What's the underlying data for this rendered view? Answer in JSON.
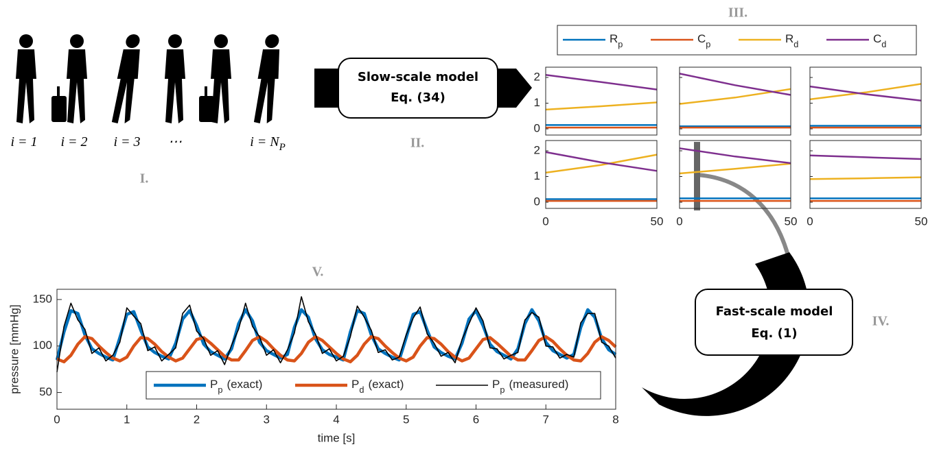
{
  "labels": [
    "I.",
    "II.",
    "III.",
    "IV.",
    "V."
  ],
  "persons": [
    {
      "text": "i = 1"
    },
    {
      "text": "i = 2"
    },
    {
      "text": "i = 3"
    },
    {
      "text": "⋯"
    },
    {
      "text": "i = N",
      "sub": "P"
    }
  ],
  "boxes": [
    {
      "title": "Slow-scale model",
      "eq": "Eq. (34)"
    },
    {
      "title": "Fast-scale model",
      "eq": "Eq. (1)"
    }
  ],
  "chart_data": [
    {
      "type": "line",
      "x": [
        0,
        25,
        50
      ],
      "xlim": [
        0,
        50
      ],
      "xticks": [
        0,
        50
      ],
      "ylim": [
        -0.24,
        2.4
      ],
      "yticks": [
        0,
        1,
        2
      ],
      "series": [
        {
          "name": "R",
          "sub": "p",
          "color": "#0072BD"
        },
        {
          "name": "C",
          "sub": "p",
          "color": "#D95319"
        },
        {
          "name": "R",
          "sub": "d",
          "color": "#EDB120"
        },
        {
          "name": "C",
          "sub": "d",
          "color": "#7E2F8E"
        }
      ],
      "panels": [
        [
          [
            0.15,
            0.15,
            0.15
          ],
          [
            0.05,
            0.05,
            0.05
          ],
          [
            0.75,
            0.88,
            1.03
          ],
          [
            2.1,
            1.82,
            1.53
          ]
        ],
        [
          [
            0.1,
            0.1,
            0.1
          ],
          [
            0.05,
            0.05,
            0.05
          ],
          [
            0.97,
            1.22,
            1.55
          ],
          [
            2.15,
            1.7,
            1.32
          ]
        ],
        [
          [
            0.12,
            0.12,
            0.12
          ],
          [
            0.05,
            0.05,
            0.05
          ],
          [
            1.15,
            1.42,
            1.75
          ],
          [
            1.65,
            1.35,
            1.1
          ]
        ],
        [
          [
            0.12,
            0.12,
            0.12
          ],
          [
            0.05,
            0.05,
            0.05
          ],
          [
            1.15,
            1.45,
            1.85
          ],
          [
            1.95,
            1.55,
            1.22
          ]
        ],
        [
          [
            0.15,
            0.15,
            0.15
          ],
          [
            0.05,
            0.05,
            0.05
          ],
          [
            1.12,
            1.3,
            1.5
          ],
          [
            2.1,
            1.78,
            1.52
          ]
        ],
        [
          [
            0.15,
            0.15,
            0.15
          ],
          [
            0.05,
            0.05,
            0.05
          ],
          [
            0.9,
            0.93,
            0.97
          ],
          [
            1.82,
            1.75,
            1.68
          ]
        ]
      ]
    },
    {
      "type": "line",
      "xlabel": "time [s]",
      "ylabel": "pressure [mmHg]",
      "xlim": [
        0,
        8
      ],
      "xticks": [
        0,
        1,
        2,
        3,
        4,
        5,
        6,
        7,
        8
      ],
      "ylim": [
        32,
        161
      ],
      "yticks": [
        50,
        100,
        150
      ],
      "legend": "lower center",
      "x": [
        0,
        0.1,
        0.2,
        0.3,
        0.4,
        0.5,
        0.6,
        0.7,
        0.8,
        0.9,
        1,
        1.1,
        1.2,
        1.3,
        1.4,
        1.5,
        1.6,
        1.7,
        1.8,
        1.9,
        2,
        2.1,
        2.2,
        2.3,
        2.4,
        2.5,
        2.6,
        2.7,
        2.8,
        2.9,
        3,
        3.1,
        3.2,
        3.3,
        3.4,
        3.5,
        3.6,
        3.7,
        3.8,
        3.9,
        4,
        4.1,
        4.2,
        4.3,
        4.4,
        4.5,
        4.6,
        4.7,
        4.8,
        4.9,
        5,
        5.1,
        5.2,
        5.3,
        5.4,
        5.5,
        5.6,
        5.7,
        5.8,
        5.9,
        6,
        6.1,
        6.2,
        6.3,
        6.4,
        6.5,
        6.6,
        6.7,
        6.8,
        6.9,
        7,
        7.1,
        7.2,
        7.3,
        7.4,
        7.5,
        7.6,
        7.7,
        7.8,
        7.9,
        8
      ],
      "series": [
        {
          "name": "P",
          "sub": "p",
          "suffix": "(exact)",
          "color": "#0072BD",
          "values": [
            85,
            115,
            138,
            135,
            112,
            97,
            92,
            88,
            85,
            109,
            134,
            137,
            117,
            99,
            93,
            89,
            86,
            103,
            129,
            138,
            122,
            102,
            94,
            90,
            86,
            97,
            124,
            139,
            127,
            104,
            95,
            91,
            87,
            91,
            120,
            139,
            131,
            108,
            96,
            91,
            88,
            85,
            115,
            138,
            135,
            112,
            97,
            92,
            88,
            85,
            109,
            134,
            137,
            117,
            99,
            93,
            89,
            86,
            103,
            129,
            138,
            122,
            102,
            94,
            90,
            86,
            97,
            124,
            139,
            127,
            104,
            95,
            91,
            87,
            91,
            120,
            139,
            131,
            108,
            96,
            91
          ]
        },
        {
          "name": "P",
          "sub": "d",
          "suffix": "(exact)",
          "color": "#D95319",
          "values": [
            86,
            83,
            90,
            102,
            110,
            108,
            100,
            93,
            87,
            84,
            88,
            100,
            109,
            108,
            102,
            94,
            88,
            84,
            87,
            97,
            107,
            109,
            103,
            96,
            89,
            85,
            85,
            95,
            106,
            110,
            105,
            97,
            90,
            85,
            84,
            92,
            104,
            110,
            106,
            99,
            92,
            86,
            83,
            90,
            102,
            110,
            108,
            100,
            93,
            87,
            84,
            88,
            100,
            109,
            108,
            102,
            94,
            88,
            84,
            87,
            97,
            107,
            109,
            103,
            96,
            89,
            85,
            85,
            95,
            106,
            110,
            105,
            97,
            90,
            85,
            84,
            92,
            104,
            110,
            106,
            99
          ]
        },
        {
          "name": "P",
          "sub": "p",
          "suffix": "(measured)",
          "color": "#000000",
          "values": [
            72,
            121,
            146,
            128,
            118,
            92,
            98,
            84,
            90,
            104,
            141,
            132,
            124,
            95,
            99,
            84,
            91,
            98,
            135,
            144,
            116,
            108,
            90,
            95,
            80,
            101,
            118,
            146,
            121,
            110,
            90,
            96,
            82,
            96,
            114,
            153,
            126,
            113,
            92,
            97,
            84,
            89,
            110,
            143,
            131,
            117,
            93,
            96,
            85,
            88,
            112,
            130,
            142,
            113,
            103,
            89,
            93,
            82,
            107,
            124,
            141,
            127,
            98,
            97,
            86,
            90,
            93,
            128,
            136,
            131,
            100,
            99,
            87,
            91,
            88,
            125,
            135,
            135,
            104,
            100,
            87
          ]
        }
      ]
    }
  ]
}
